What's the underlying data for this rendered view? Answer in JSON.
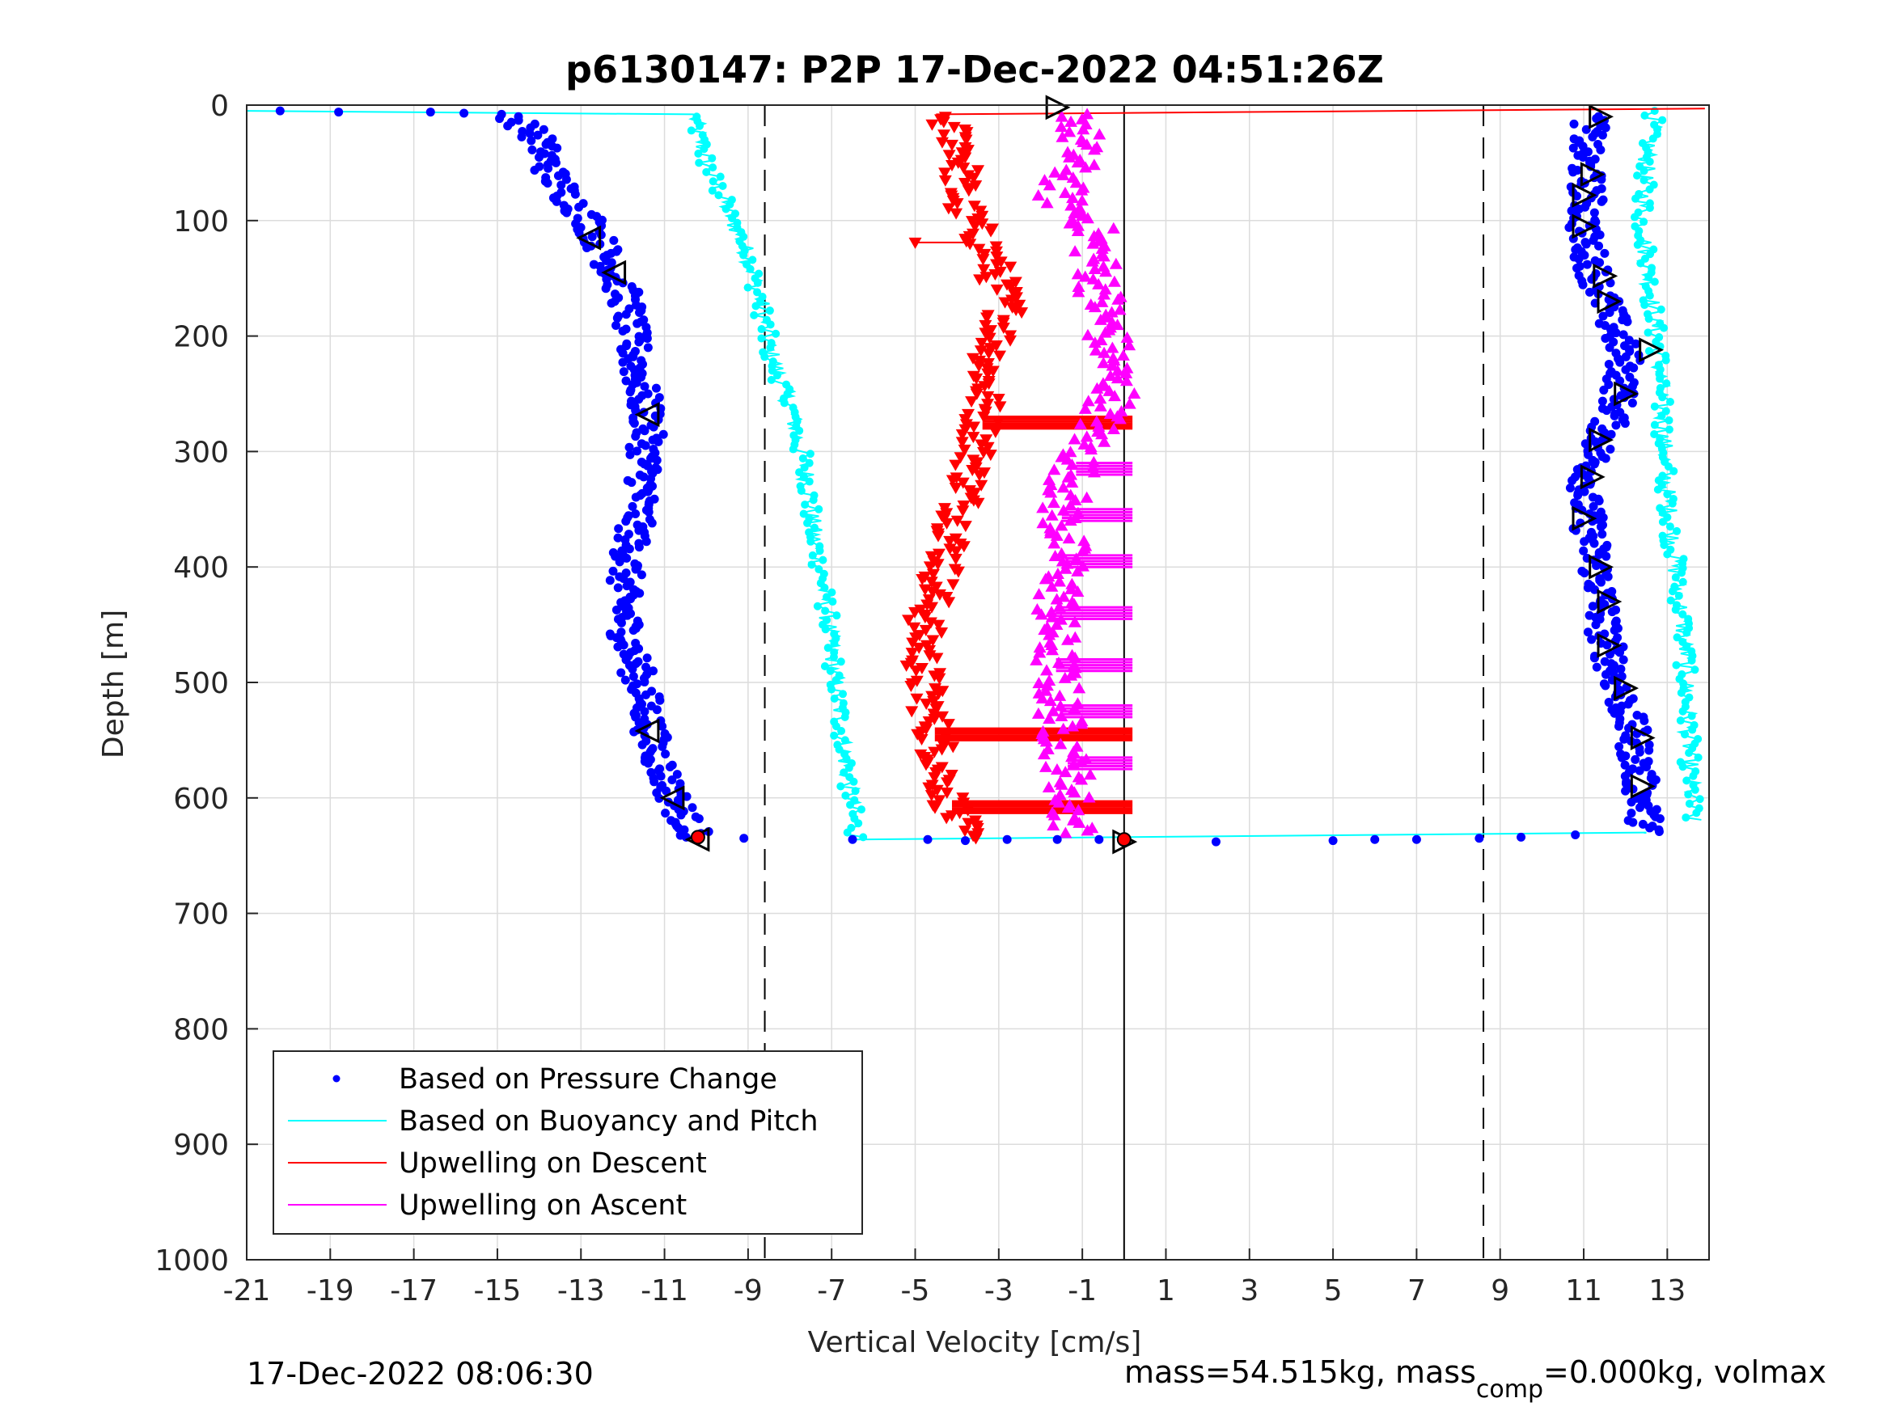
{
  "chart_data": {
    "type": "scatter",
    "title": "p6130147: P2P 17-Dec-2022 04:51:26Z",
    "xlabel": "Vertical Velocity [cm/s]",
    "ylabel": "Depth [m]",
    "xlim": [
      -21,
      14
    ],
    "ylim": [
      0,
      1000
    ],
    "y_reversed": true,
    "xticks": [
      -21,
      -19,
      -17,
      -15,
      -13,
      -11,
      -9,
      -7,
      -5,
      -3,
      -1,
      1,
      3,
      5,
      7,
      9,
      11,
      13
    ],
    "yticks": [
      0,
      100,
      200,
      300,
      400,
      500,
      600,
      700,
      800,
      900,
      1000
    ],
    "grid": true,
    "legend_position": "bottom-left",
    "reference_lines": [
      {
        "x": -8.6,
        "style": "dashed"
      },
      {
        "x": 8.6,
        "style": "dashed"
      },
      {
        "x": 0,
        "style": "solid"
      }
    ],
    "series": [
      {
        "name": "Based on Pressure Change",
        "color": "#0000ff",
        "style": "dots",
        "profiles": [
          {
            "x": [
              -14.6,
              -14.0,
              -13.7,
              -13.3,
              -12.8,
              -12.4,
              -11.9,
              -11.8,
              -11.6,
              -11.4,
              -11.5,
              -11.8,
              -12.0,
              -11.9,
              -11.5,
              -11.3,
              -10.9,
              -10.5,
              -10.2
            ],
            "y": [
              10,
              30,
              60,
              80,
              100,
              130,
              170,
              200,
              240,
              270,
              330,
              380,
              420,
              460,
              510,
              550,
              590,
              620,
              635
            ]
          },
          {
            "x": [
              11.2,
              11.0,
              11.1,
              11.0,
              11.3,
              11.6,
              12.0,
              11.8,
              11.3,
              11.0,
              11.2,
              11.4,
              11.5,
              11.8,
              12.2,
              12.4,
              12.5
            ],
            "y": [
              10,
              40,
              80,
              110,
              150,
              180,
              220,
              260,
              300,
              340,
              380,
              420,
              460,
              500,
              550,
              600,
              630
            ]
          }
        ],
        "surface_points": {
          "x": [
            -20.2,
            -18.8,
            -16.6,
            -15.8,
            -14.9
          ],
          "y": [
            5,
            6,
            6,
            7,
            8
          ]
        },
        "bottom_points": {
          "x": [
            -9.1,
            -6.5,
            -4.7,
            -3.8,
            -2.8,
            -1.6,
            -0.6,
            2.2,
            5.0,
            6.0,
            7.0,
            8.5,
            9.5,
            10.8
          ],
          "y": [
            635,
            636,
            636,
            637,
            636,
            636,
            636,
            638,
            637,
            636,
            636,
            635,
            634,
            632
          ]
        }
      },
      {
        "name": "Based on Buoyancy and Pitch",
        "color": "#00ffff",
        "style": "line",
        "profiles": [
          {
            "x": [
              -10.3,
              -10.0,
              -9.5,
              -9.0,
              -8.7,
              -8.5,
              -8.0,
              -7.6,
              -7.4,
              -7.1,
              -6.9,
              -6.7,
              -6.5,
              -6.4
            ],
            "y": [
              10,
              50,
              90,
              130,
              170,
              210,
              260,
              320,
              380,
              440,
              500,
              560,
              610,
              635
            ]
          },
          {
            "x": [
              12.7,
              12.5,
              12.4,
              12.6,
              12.8,
              12.9,
              13.0,
              13.2,
              13.4,
              13.5,
              13.6
            ],
            "y": [
              5,
              50,
              100,
              160,
              220,
              280,
              340,
              400,
              460,
              540,
              620
            ]
          }
        ]
      },
      {
        "name": "Upwelling on Descent",
        "color": "#ff0000",
        "style": "triangle-down",
        "profile": {
          "x": [
            -4.4,
            -3.8,
            -4.0,
            -3.2,
            -2.8,
            -3.3,
            -3.4,
            -3.8,
            -4.3,
            -4.8,
            -4.8,
            -4.5,
            -4.3,
            -4.0,
            -3.8
          ],
          "y": [
            10,
            40,
            80,
            130,
            180,
            230,
            280,
            340,
            400,
            450,
            500,
            550,
            590,
            620,
            635
          ]
        },
        "spikes": [
          {
            "y": 275,
            "x_end": 0.2
          },
          {
            "y": 545,
            "x_end": 0.2
          },
          {
            "y": 608,
            "x_end": 0.2
          }
        ]
      },
      {
        "name": "Upwelling on Ascent",
        "color": "#ff00ff",
        "style": "triangle-up",
        "profile": {
          "x": [
            -1.0,
            -1.2,
            -0.8,
            -0.6,
            -0.4,
            -0.2,
            -1.0,
            -1.5,
            -1.4,
            -1.7,
            -1.6,
            -1.5,
            -1.3,
            -1.3,
            -1.2,
            -1.6
          ],
          "y": [
            10,
            50,
            100,
            150,
            200,
            250,
            300,
            350,
            400,
            450,
            500,
            540,
            580,
            610,
            630,
            80
          ]
        },
        "spikes": [
          {
            "y": 315,
            "x_start": -3.0
          },
          {
            "y": 355,
            "x_start": -3.0
          },
          {
            "y": 395,
            "x_start": -3.0
          },
          {
            "y": 440,
            "x_start": -3.0
          },
          {
            "y": 485,
            "x_start": -3.0
          },
          {
            "y": 525,
            "x_start": -3.0
          },
          {
            "y": 570,
            "x_start": -3.0
          }
        ]
      }
    ],
    "markers": {
      "left_triangles": [
        {
          "x": -12.8,
          "y": 115
        },
        {
          "x": -12.2,
          "y": 145
        },
        {
          "x": -11.4,
          "y": 268
        },
        {
          "x": -11.4,
          "y": 542
        },
        {
          "x": -10.8,
          "y": 600
        },
        {
          "x": -10.2,
          "y": 636
        }
      ],
      "right_triangles": [
        {
          "x": -1.6,
          "y": 2
        },
        {
          "x": 11.4,
          "y": 10
        },
        {
          "x": 11.2,
          "y": 60
        },
        {
          "x": 11.0,
          "y": 78
        },
        {
          "x": 11.0,
          "y": 105
        },
        {
          "x": 11.5,
          "y": 148
        },
        {
          "x": 11.6,
          "y": 170
        },
        {
          "x": 12.6,
          "y": 212
        },
        {
          "x": 12.0,
          "y": 250
        },
        {
          "x": 11.4,
          "y": 290
        },
        {
          "x": 11.2,
          "y": 322
        },
        {
          "x": 11.0,
          "y": 358
        },
        {
          "x": 11.4,
          "y": 400
        },
        {
          "x": 11.6,
          "y": 430
        },
        {
          "x": 11.6,
          "y": 468
        },
        {
          "x": 12.0,
          "y": 505
        },
        {
          "x": 12.4,
          "y": 548
        },
        {
          "x": 12.4,
          "y": 590
        },
        {
          "x": 0.0,
          "y": 638
        }
      ],
      "red_dots": [
        {
          "x": -10.2,
          "y": 634
        },
        {
          "x": 0.0,
          "y": 636
        }
      ]
    },
    "legend": [
      {
        "label": "Based on Pressure Change",
        "color": "#0000ff",
        "kind": "dot"
      },
      {
        "label": "Based on Buoyancy and Pitch",
        "color": "#00ffff",
        "kind": "line"
      },
      {
        "label": "Upwelling on Descent",
        "color": "#ff0000",
        "kind": "line"
      },
      {
        "label": "Upwelling on Ascent",
        "color": "#ff00ff",
        "kind": "line"
      }
    ]
  },
  "footer": {
    "timestamp": "17-Dec-2022 08:06:30",
    "mass_text_a": "mass=54.515kg, mass",
    "mass_sub": "comp",
    "mass_text_b": "=0.000kg, volmax"
  }
}
